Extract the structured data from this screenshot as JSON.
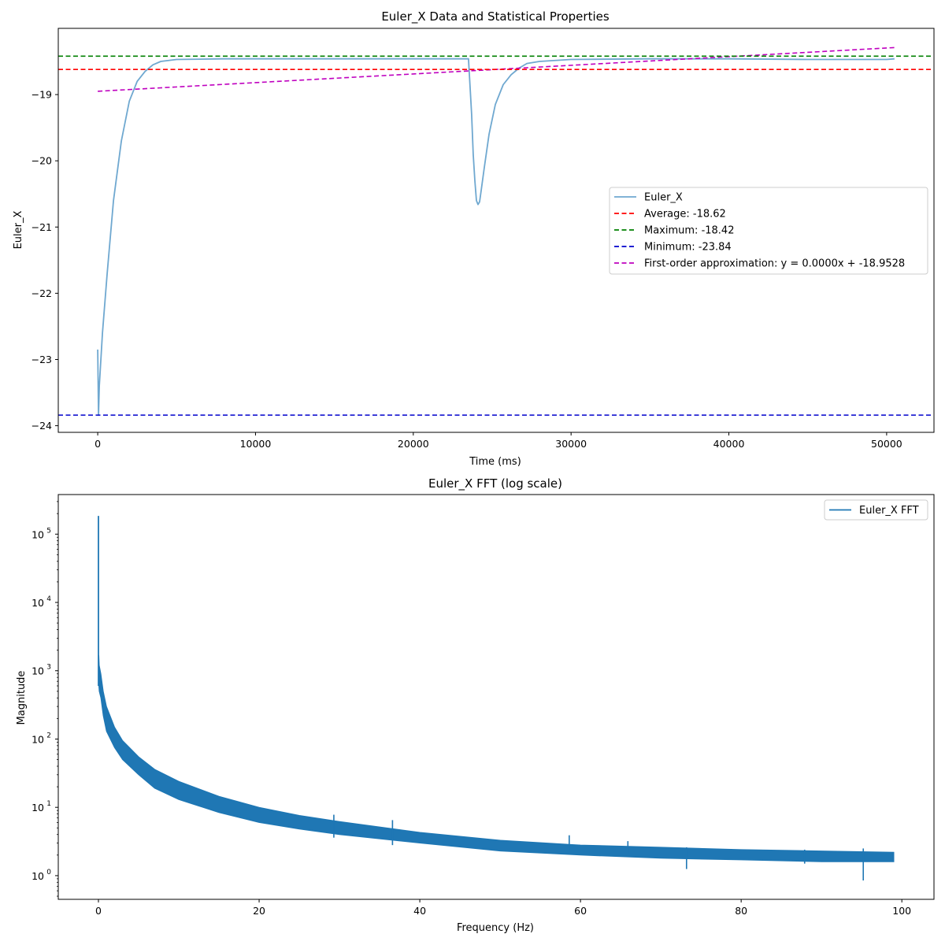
{
  "chart_data": [
    {
      "type": "line",
      "title": "Euler_X Data and Statistical Properties",
      "xlabel": "Time (ms)",
      "ylabel": "Euler_X",
      "xlim": [
        -2500,
        53000
      ],
      "ylim": [
        -24.1,
        -18.0
      ],
      "xticks": [
        0,
        10000,
        20000,
        30000,
        40000,
        50000
      ],
      "yticks": [
        -24,
        -23,
        -22,
        -21,
        -20,
        -19
      ],
      "grid": false,
      "legend_position": "center-right",
      "series": [
        {
          "name": "Euler_X",
          "color": "#6fa8d0",
          "style": "solid",
          "x": [
            0,
            50,
            100,
            300,
            600,
            1000,
            1500,
            2000,
            2500,
            3000,
            3500,
            4000,
            5000,
            8000,
            12000,
            16000,
            20000,
            23500,
            23700,
            23800,
            23900,
            24000,
            24100,
            24200,
            24300,
            24500,
            24800,
            25200,
            25700,
            26200,
            26700,
            27200,
            28000,
            30000,
            35000,
            40000,
            45000,
            50000,
            50500
          ],
          "y": [
            -22.85,
            -23.84,
            -23.4,
            -22.6,
            -21.7,
            -20.6,
            -19.7,
            -19.1,
            -18.8,
            -18.65,
            -18.55,
            -18.5,
            -18.47,
            -18.46,
            -18.46,
            -18.46,
            -18.46,
            -18.46,
            -19.3,
            -19.9,
            -20.3,
            -20.6,
            -20.66,
            -20.62,
            -20.45,
            -20.1,
            -19.6,
            -19.15,
            -18.85,
            -18.7,
            -18.6,
            -18.53,
            -18.5,
            -18.47,
            -18.46,
            -18.46,
            -18.47,
            -18.47,
            -18.46
          ]
        },
        {
          "name": "Average: -18.62",
          "color": "#ff0000",
          "style": "dashed",
          "hline": -18.62
        },
        {
          "name": "Maximum: -18.42",
          "color": "#008000",
          "style": "dashed",
          "hline": -18.42
        },
        {
          "name": "Minimum: -23.84",
          "color": "#0000cc",
          "style": "dashed",
          "hline": -23.84
        },
        {
          "name": "First-order approximation: y = 0.0000x + -18.9528",
          "color": "#bf00bf",
          "style": "dashed",
          "x": [
            0,
            50500
          ],
          "y": [
            -18.95,
            -18.29
          ]
        }
      ]
    },
    {
      "type": "line",
      "title": "Euler_X FFT (log scale)",
      "xlabel": "Frequency (Hz)",
      "ylabel": "Magnitude",
      "xlim": [
        -5,
        104
      ],
      "ylim_log": [
        0.45,
        380000
      ],
      "log_scale_y": true,
      "xticks": [
        0,
        20,
        40,
        60,
        80,
        100
      ],
      "yticks": [
        {
          "value": 1,
          "base": "10",
          "exp": "0"
        },
        {
          "value": 10,
          "base": "10",
          "exp": "1"
        },
        {
          "value": 100,
          "base": "10",
          "exp": "2"
        },
        {
          "value": 1000,
          "base": "10",
          "exp": "3"
        },
        {
          "value": 10000,
          "base": "10",
          "exp": "4"
        },
        {
          "value": 100000,
          "base": "10",
          "exp": "5"
        }
      ],
      "grid": false,
      "legend_position": "top-right",
      "series": [
        {
          "name": "Euler_X FFT",
          "color": "#1f77b4",
          "dc_peak": {
            "x": 0,
            "y": 185000
          },
          "x": [
            0.05,
            0.1,
            0.3,
            0.6,
            1,
            2,
            3,
            5,
            7,
            10,
            15,
            20,
            25,
            30,
            40,
            50,
            60,
            70,
            80,
            90,
            99
          ],
          "y_upper": [
            1700,
            1200,
            900,
            500,
            300,
            150,
            95,
            55,
            36,
            24,
            14.5,
            10,
            7.6,
            6.2,
            4.3,
            3.3,
            2.8,
            2.6,
            2.4,
            2.3,
            2.2
          ],
          "y_lower": [
            600,
            500,
            400,
            220,
            130,
            75,
            50,
            30,
            19,
            13,
            8.4,
            6.0,
            4.8,
            4.0,
            3.0,
            2.3,
            2.0,
            1.8,
            1.7,
            1.6,
            1.6
          ],
          "spikes": [
            {
              "x": 29.3,
              "hi": 7.8,
              "lo": 3.6
            },
            {
              "x": 36.6,
              "hi": 6.5,
              "lo": 2.8
            },
            {
              "x": 58.6,
              "hi": 3.9,
              "lo": 2.3
            },
            {
              "x": 65.9,
              "hi": 3.2,
              "lo": 2.1
            },
            {
              "x": 73.2,
              "hi": 2.6,
              "lo": 1.25
            },
            {
              "x": 87.9,
              "hi": 2.4,
              "lo": 1.5
            },
            {
              "x": 95.2,
              "hi": 2.5,
              "lo": 0.85
            }
          ]
        }
      ]
    }
  ]
}
